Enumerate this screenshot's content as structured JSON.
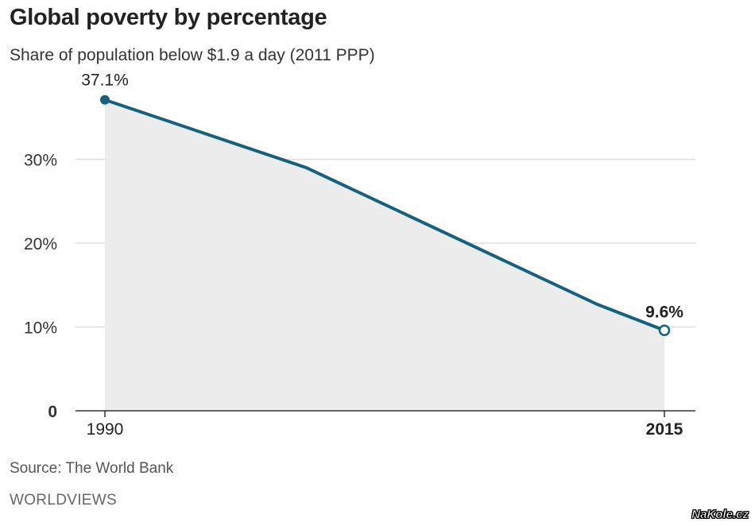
{
  "chart_data": {
    "type": "area",
    "title": "Global poverty by percentage",
    "subtitle": "Share of population below $1.9 a day (2011 PPP)",
    "xlabel": "",
    "ylabel": "",
    "x": [
      1990,
      1999,
      2012,
      2015
    ],
    "series": [
      {
        "values": [
          37.1,
          29.0,
          12.7,
          9.6
        ]
      }
    ],
    "xlim": [
      1990,
      2015
    ],
    "ylim": [
      0,
      40
    ],
    "y_ticks": [
      {
        "value": 0,
        "label": "0"
      },
      {
        "value": 10,
        "label": "10%"
      },
      {
        "value": 20,
        "label": "20%"
      },
      {
        "value": 30,
        "label": "30%"
      }
    ],
    "x_tick_labels": [
      {
        "value": 1990,
        "label": "1990"
      },
      {
        "value": 2015,
        "label": "2015"
      }
    ],
    "annotations": [
      {
        "x": 1990,
        "y": 37.1,
        "label": "37.1%"
      },
      {
        "x": 2015,
        "y": 9.6,
        "label": "9.6%"
      }
    ],
    "grid": true,
    "legend": "none",
    "colors": {
      "line": "#14627e",
      "area": "#ececec",
      "grid": "#dddddd",
      "axis": "#333333"
    }
  },
  "footer": {
    "source": "Source: The World Bank",
    "brand": "WORLDVIEWS"
  },
  "watermark": "NaKole.cz"
}
